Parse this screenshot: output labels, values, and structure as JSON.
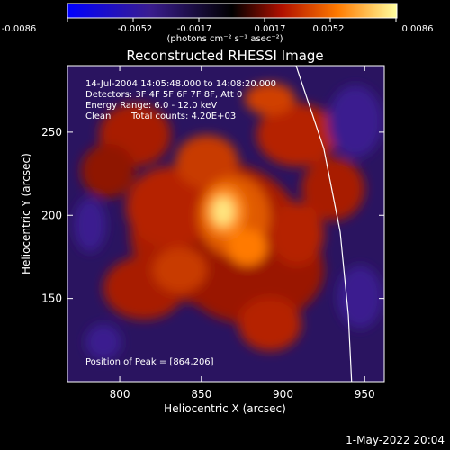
{
  "colorbar": {
    "ticks": [
      "-0.0086",
      "-0.0052",
      "-0.0017",
      "0.0017",
      "0.0052",
      "0.0086"
    ],
    "units": "(photons cm⁻² s⁻¹ asec⁻²)",
    "colors": [
      "#0000ff",
      "#3a1d8f",
      "#000000",
      "#b01000",
      "#ff7a00",
      "#ffffa0"
    ]
  },
  "chart_data": {
    "type": "heatmap",
    "title": "Reconstructed RHESSI Image",
    "xlabel": "Heliocentric X (arcsec)",
    "ylabel": "Heliocentric Y (arcsec)",
    "xlim": [
      768,
      962
    ],
    "ylim": [
      100,
      290
    ],
    "xticks": [
      800,
      850,
      900,
      950
    ],
    "yticks": [
      150,
      200,
      250
    ],
    "annotations": {
      "time": "14-Jul-2004 14:05:48.000 to 14:08:20.000",
      "detectors": "Detectors: 3F 4F 5F 6F 7F 8F, Att 0",
      "energy": "Energy Range: 6.0 - 12.0 keV",
      "clean": "Clean",
      "counts": "Total counts: 4.20E+03",
      "peak": "Position of Peak = [864,206]"
    },
    "peak": [
      864,
      206
    ],
    "limb": [
      [
        908,
        290
      ],
      [
        925,
        240
      ],
      [
        935,
        190
      ],
      [
        940,
        140
      ],
      [
        942,
        100
      ]
    ]
  },
  "footer": "1-May-2022 20:04"
}
